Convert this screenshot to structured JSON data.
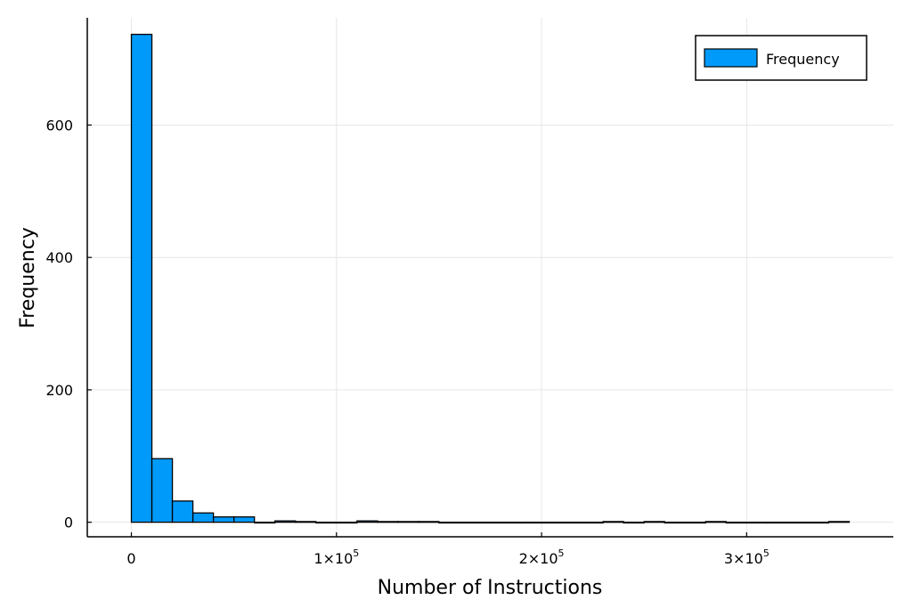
{
  "chart_data": {
    "type": "bar",
    "title": "",
    "xlabel": "Number of Instructions",
    "ylabel": "Frequency",
    "bin_width": 10000,
    "bin_starts": [
      0,
      10000,
      20000,
      30000,
      40000,
      50000,
      60000,
      70000,
      80000,
      90000,
      100000,
      110000,
      120000,
      130000,
      140000,
      150000,
      160000,
      170000,
      180000,
      190000,
      200000,
      210000,
      220000,
      230000,
      240000,
      250000,
      260000,
      270000,
      280000,
      290000,
      300000,
      310000,
      320000,
      330000,
      340000
    ],
    "values": [
      737,
      96,
      32,
      14,
      8,
      8,
      0,
      2,
      1,
      0,
      0,
      2,
      1,
      1,
      1,
      0,
      0,
      0,
      0,
      0,
      0,
      0,
      0,
      1,
      0,
      1,
      0,
      0,
      1,
      0,
      0,
      0,
      0,
      0,
      1
    ],
    "xlim": [
      -21500,
      371500
    ],
    "ylim": [
      -22,
      762
    ],
    "xticks": [
      0,
      100000,
      200000,
      300000
    ],
    "xtick_labels": [
      {
        "base": "0",
        "exp": ""
      },
      {
        "base": "1×10",
        "exp": "5"
      },
      {
        "base": "2×10",
        "exp": "5"
      },
      {
        "base": "3×10",
        "exp": "5"
      }
    ],
    "yticks": [
      0,
      200,
      400,
      600
    ],
    "ytick_labels": [
      "0",
      "200",
      "400",
      "600"
    ],
    "grid": true,
    "legend": {
      "position": "top-right",
      "entries": [
        "Frequency"
      ]
    },
    "colors": {
      "bar": "#009AFA",
      "grid": "#E6E6E6",
      "axis": "#000000"
    }
  }
}
